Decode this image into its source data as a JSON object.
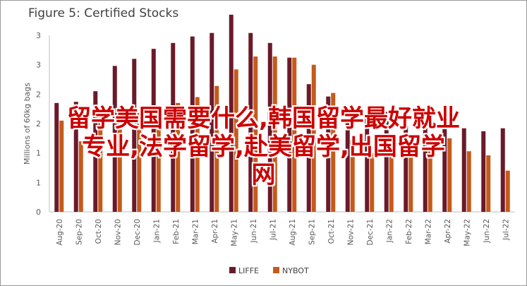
{
  "chart_data": {
    "type": "bar",
    "title": "Figure 5: Certified Stocks",
    "ylabel": "Millions of 60kg bags",
    "ylim": [
      0,
      3
    ],
    "yticks": [
      "0",
      "1",
      "1",
      "2",
      "2",
      "3",
      "3"
    ],
    "ytick_values": [
      0,
      0.5,
      1,
      1.5,
      2,
      2.5,
      3
    ],
    "categories": [
      "Aug-20",
      "Sep-20",
      "Oct-20",
      "Nov-20",
      "Dec-20",
      "Jan-21",
      "Feb-21",
      "Mar-21",
      "Apr-21",
      "May-21",
      "Jun-21",
      "Jul-21",
      "Aug-21",
      "Sep-21",
      "Oct-21",
      "Nov-21",
      "Dec-21",
      "Jan-22",
      "Feb-22",
      "Mar-22",
      "Apr-22",
      "May-22",
      "Jun-22",
      "Jul-22"
    ],
    "series": [
      {
        "name": "LIFFE",
        "color": "#6b1a2a",
        "values": [
          1.85,
          1.87,
          2.05,
          2.48,
          2.6,
          2.77,
          2.87,
          2.98,
          3.04,
          3.35,
          3.04,
          2.87,
          2.62,
          2.17,
          1.96,
          1.58,
          1.6,
          1.7,
          1.46,
          1.48,
          1.55,
          1.42,
          1.37,
          1.42
        ]
      },
      {
        "name": "NYBOT",
        "color": "#c55a1a",
        "values": [
          1.55,
          1.2,
          1.6,
          1.68,
          1.68,
          1.75,
          1.85,
          1.95,
          2.14,
          2.42,
          2.64,
          2.64,
          2.62,
          2.5,
          2.02,
          1.22,
          1.0,
          1.05,
          1.1,
          1.07,
          1.25,
          1.03,
          0.96,
          0.7
        ]
      }
    ],
    "legend_position": "bottom",
    "grid": false
  },
  "overlay": {
    "line1": "留学美国需要什么,韩国留学最好就业",
    "line2": "专业,法学留学,赴美留学,出国留学",
    "line3": "网"
  }
}
